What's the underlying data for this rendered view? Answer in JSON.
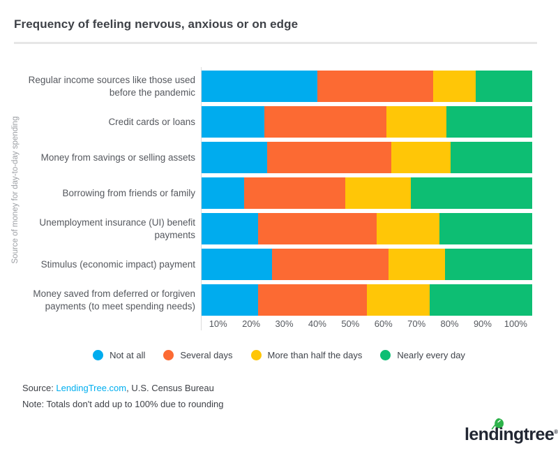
{
  "title": "Frequency of feeling nervous, anxious or on edge",
  "chart_data": {
    "type": "bar",
    "stacked": true,
    "orientation": "horizontal",
    "title": "Frequency of feeling nervous, anxious or on edge",
    "ylabel": "Source of money for day-to-day spending",
    "xlabel": "",
    "xlim": [
      0,
      100
    ],
    "grid": false,
    "legend_position": "bottom",
    "x_tick_labels": [
      "10%",
      "20%",
      "30%",
      "40%",
      "50%",
      "60%",
      "70%",
      "80%",
      "90%",
      "100%"
    ],
    "categories": [
      "Regular income sources like those used before the pandemic",
      "Credit cards or loans",
      "Money from savings or selling assets",
      "Borrowing from friends or family",
      "Unemployment insurance (UI) benefit payments",
      "Stimulus (economic impact) payment",
      "Money saved from deferred or forgiven payments (to meet spending needs)"
    ],
    "series": [
      {
        "name": "Not at all",
        "color": "#00acee",
        "values": [
          35,
          19,
          20,
          13,
          17,
          21,
          17
        ]
      },
      {
        "name": "Several days",
        "color": "#fc6a33",
        "values": [
          35,
          37,
          38,
          31,
          36,
          35,
          33
        ]
      },
      {
        "name": "More than half the days",
        "color": "#ffc607",
        "values": [
          13,
          18,
          18,
          20,
          19,
          17,
          19
        ]
      },
      {
        "name": "Nearly every day",
        "color": "#0dbe73",
        "values": [
          17,
          26,
          25,
          37,
          28,
          26,
          31
        ]
      }
    ]
  },
  "footer": {
    "source_prefix": "Source: ",
    "source_link": "LendingTree.com",
    "source_suffix": ", U.S. Census Bureau",
    "note": "Note: Totals don't add up to 100% due to rounding"
  },
  "logo": {
    "text": "lendingtree",
    "registered": "®",
    "leaf_color": "#2db24a"
  }
}
